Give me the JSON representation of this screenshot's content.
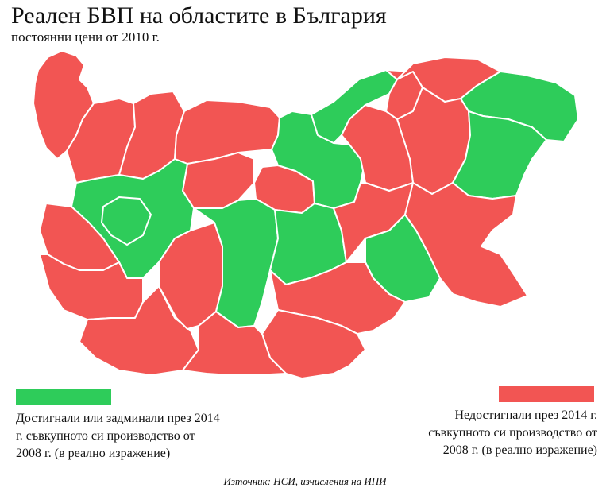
{
  "title": "Реален БВП на областите в България",
  "subtitle": "постоянни цени от 2010 г.",
  "colors": {
    "reached": "#2ecc5a",
    "not_reached": "#f25553",
    "border": "#ffffff"
  },
  "legend": {
    "reached": "Достигнали или задминали през 2014\nг. съвкупното си производство от\n2008 г. (в реално изражение)",
    "not_reached": "Недостигнали през 2014 г.\nсъвкупното си производство от\n2008 г. (в реално изражение)"
  },
  "source": "Източник: НСИ, изчисления на ИПИ",
  "map_data": {
    "categories": [
      "reached",
      "not_reached"
    ],
    "regions": [
      {
        "id": "vidin",
        "status": "not_reached"
      },
      {
        "id": "montana",
        "status": "not_reached"
      },
      {
        "id": "vratsa",
        "status": "not_reached"
      },
      {
        "id": "pleven",
        "status": "not_reached"
      },
      {
        "id": "veliko-tarnovo",
        "status": "reached"
      },
      {
        "id": "ruse",
        "status": "reached"
      },
      {
        "id": "razgrad",
        "status": "not_reached"
      },
      {
        "id": "silistra",
        "status": "not_reached"
      },
      {
        "id": "dobrich",
        "status": "reached"
      },
      {
        "id": "shumen",
        "status": "not_reached"
      },
      {
        "id": "targovishte",
        "status": "not_reached"
      },
      {
        "id": "varna",
        "status": "reached"
      },
      {
        "id": "lovech",
        "status": "not_reached"
      },
      {
        "id": "gabrovo",
        "status": "not_reached"
      },
      {
        "id": "sofia-oblast",
        "status": "reached"
      },
      {
        "id": "sofia-city",
        "status": "reached"
      },
      {
        "id": "pernik",
        "status": "not_reached"
      },
      {
        "id": "kyustendil",
        "status": "not_reached"
      },
      {
        "id": "blagoevgrad",
        "status": "not_reached"
      },
      {
        "id": "pazardzhik",
        "status": "not_reached"
      },
      {
        "id": "plovdiv",
        "status": "reached"
      },
      {
        "id": "stara-zagora",
        "status": "reached"
      },
      {
        "id": "sliven",
        "status": "not_reached"
      },
      {
        "id": "yambol",
        "status": "reached"
      },
      {
        "id": "burgas",
        "status": "not_reached"
      },
      {
        "id": "smolyan",
        "status": "not_reached"
      },
      {
        "id": "kardzhali",
        "status": "not_reached"
      },
      {
        "id": "haskovo",
        "status": "not_reached"
      }
    ]
  }
}
